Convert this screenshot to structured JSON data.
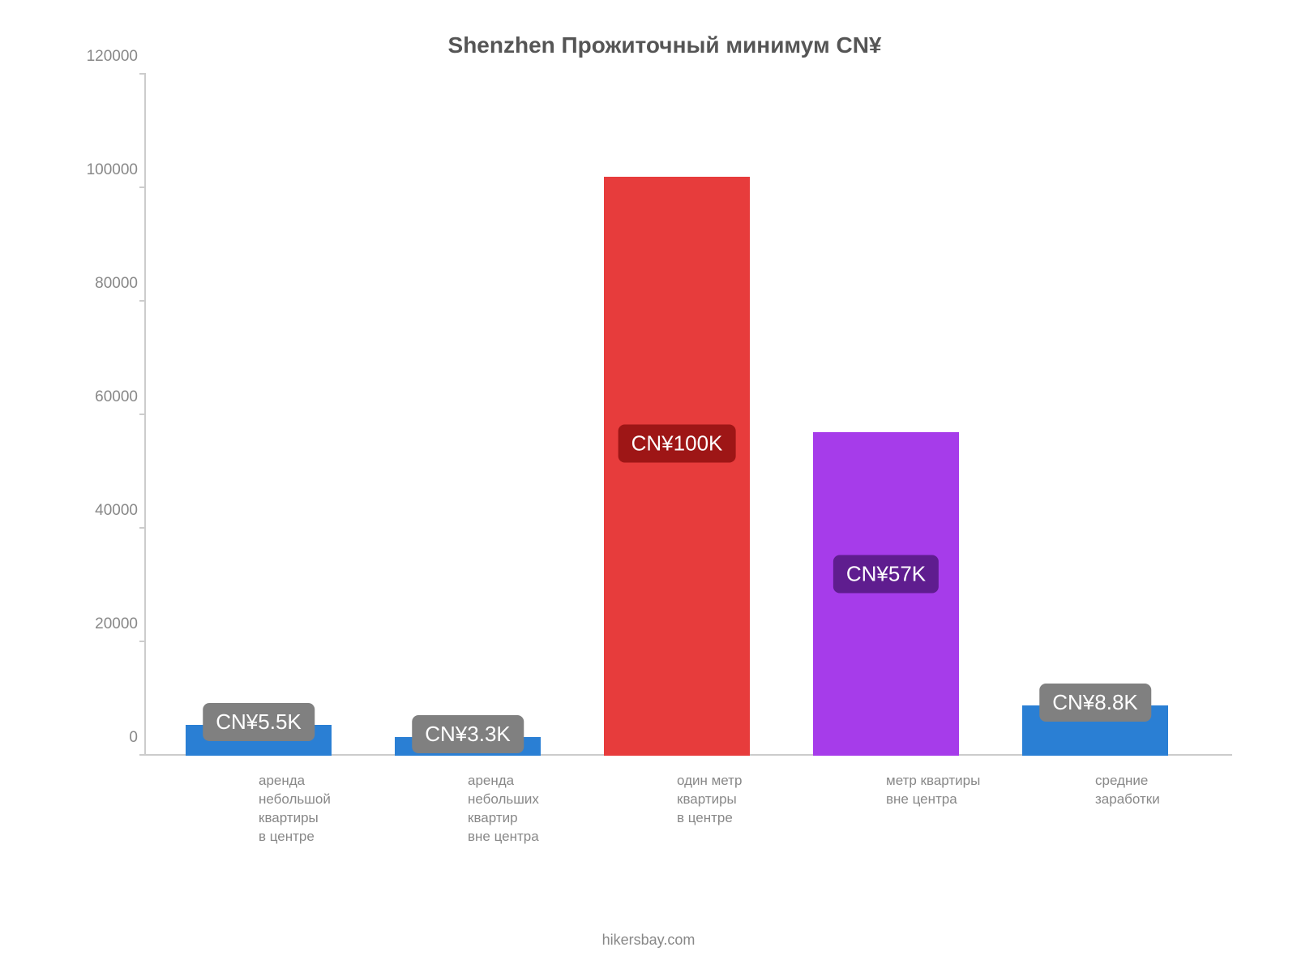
{
  "chart": {
    "type": "bar",
    "title": "Shenzhen Прожиточный минимум CN¥",
    "title_fontsize": 28,
    "title_color": "#555555",
    "background_color": "#ffffff",
    "axis_color": "#cccccc",
    "ylim": [
      0,
      120000
    ],
    "ytick_step": 20000,
    "yticks": [
      {
        "value": 0,
        "label": "0"
      },
      {
        "value": 20000,
        "label": "20000"
      },
      {
        "value": 40000,
        "label": "40000"
      },
      {
        "value": 60000,
        "label": "60000"
      },
      {
        "value": 80000,
        "label": "80000"
      },
      {
        "value": 100000,
        "label": "100000"
      },
      {
        "value": 120000,
        "label": "120000"
      }
    ],
    "ytick_fontsize": 19,
    "ytick_color": "#888888",
    "xlabel_fontsize": 17,
    "xlabel_color": "#888888",
    "badge_fontsize": 26,
    "badge_text_color": "#ffffff",
    "bar_width": 0.7,
    "bars": [
      {
        "label_lines": [
          "аренда",
          "небольшой",
          "квартиры",
          "в центре"
        ],
        "value": 5500,
        "value_label": "CN¥5.5K",
        "bar_color": "#2a7fd4",
        "badge_color": "#808080",
        "badge_above": true
      },
      {
        "label_lines": [
          "аренда",
          "небольших",
          "квартир",
          "вне центра"
        ],
        "value": 3300,
        "value_label": "CN¥3.3K",
        "bar_color": "#2a7fd4",
        "badge_color": "#808080",
        "badge_above": true
      },
      {
        "label_lines": [
          "один метр квартиры",
          "в центре"
        ],
        "value": 102000,
        "value_label": "CN¥100K",
        "bar_color": "#e73c3c",
        "badge_color": "#9e1616",
        "badge_above": false,
        "badge_y": 55000
      },
      {
        "label_lines": [
          "метр квартиры",
          "вне центра"
        ],
        "value": 57000,
        "value_label": "CN¥57K",
        "bar_color": "#a63cea",
        "badge_color": "#5f1d8f",
        "badge_above": false,
        "badge_y": 32000
      },
      {
        "label_lines": [
          "средние",
          "заработки"
        ],
        "value": 8800,
        "value_label": "CN¥8.8K",
        "bar_color": "#2a7fd4",
        "badge_color": "#808080",
        "badge_above": true
      }
    ],
    "footer": "hikersbay.com",
    "footer_fontsize": 18,
    "footer_color": "#888888"
  }
}
